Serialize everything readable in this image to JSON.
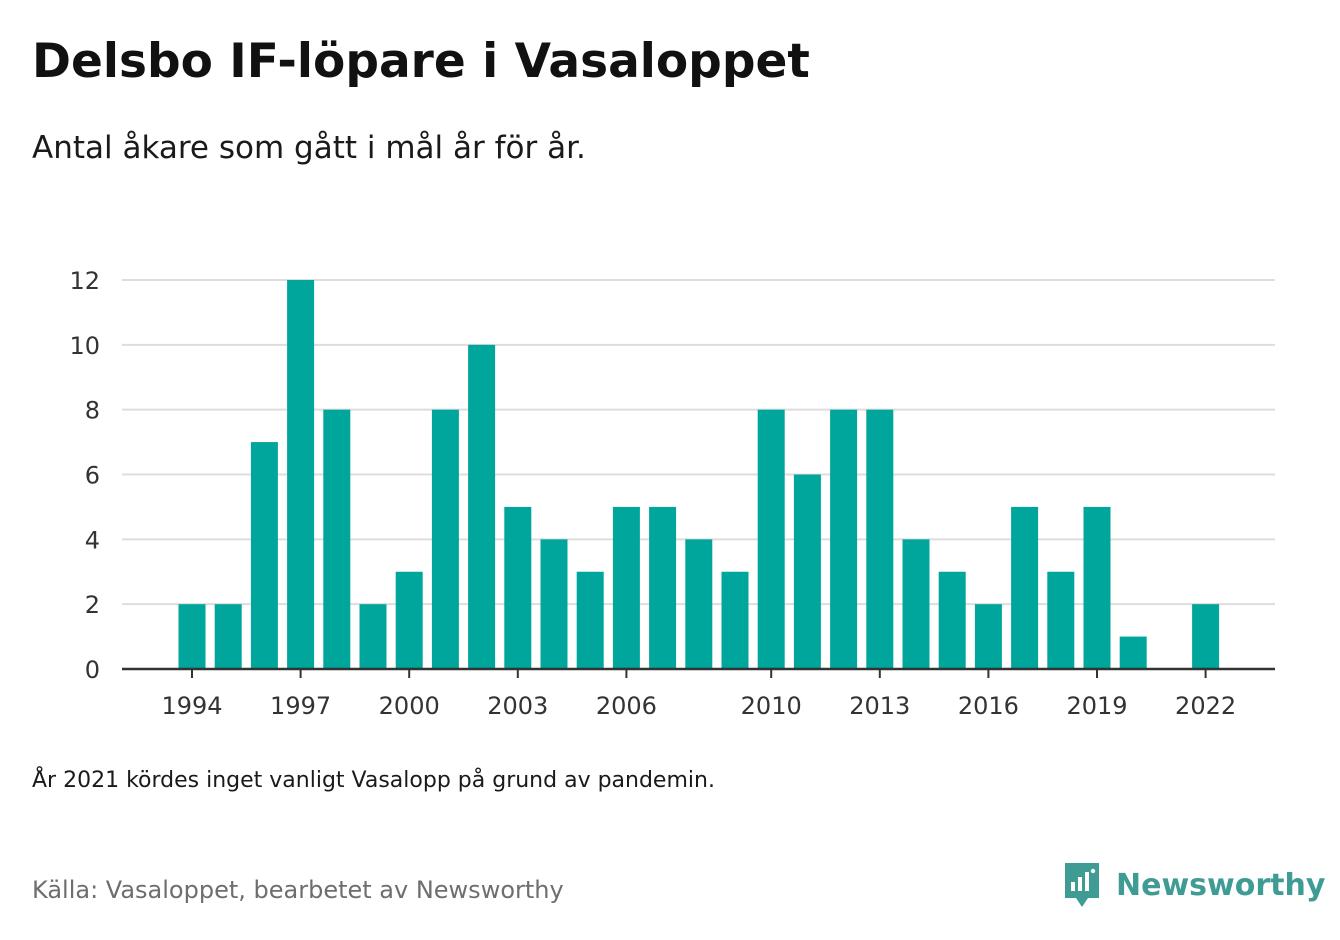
{
  "title": "Delsbo IF-löpare i Vasaloppet",
  "subtitle": "Antal åkare som gått i mål år för år.",
  "note": "År 2021 kördes inget vanligt Vasalopp på grund av pandemin.",
  "source": "Källa: Vasaloppet, bearbetet av Newsworthy",
  "brand": {
    "name": "Newsworthy",
    "icon": "newsworthy-logo-icon"
  },
  "colors": {
    "bar": "#00a59c",
    "grid": "#dddddd",
    "axis": "#333333",
    "brand": "#3f9c95"
  },
  "chart_data": {
    "type": "bar",
    "categories": [
      "1994",
      "1995",
      "1996",
      "1997",
      "1998",
      "1999",
      "2000",
      "2001",
      "2002",
      "2003",
      "2004",
      "2005",
      "2006",
      "2007",
      "2008",
      "2009",
      "2010",
      "2011",
      "2012",
      "2013",
      "2014",
      "2015",
      "2016",
      "2017",
      "2018",
      "2019",
      "2020",
      "2021",
      "2022"
    ],
    "values": [
      2,
      2,
      7,
      12,
      8,
      2,
      3,
      8,
      10,
      5,
      4,
      3,
      5,
      5,
      4,
      3,
      8,
      6,
      8,
      8,
      4,
      3,
      2,
      5,
      3,
      5,
      1,
      null,
      2
    ],
    "x_tick_labels": [
      "1994",
      "1997",
      "2000",
      "2003",
      "2006",
      "2010",
      "2013",
      "2016",
      "2019",
      "2022"
    ],
    "y_tick_labels": [
      "0",
      "2",
      "4",
      "6",
      "8",
      "10",
      "12"
    ],
    "ylim": [
      0,
      12
    ],
    "grid": true,
    "legend": "none"
  }
}
